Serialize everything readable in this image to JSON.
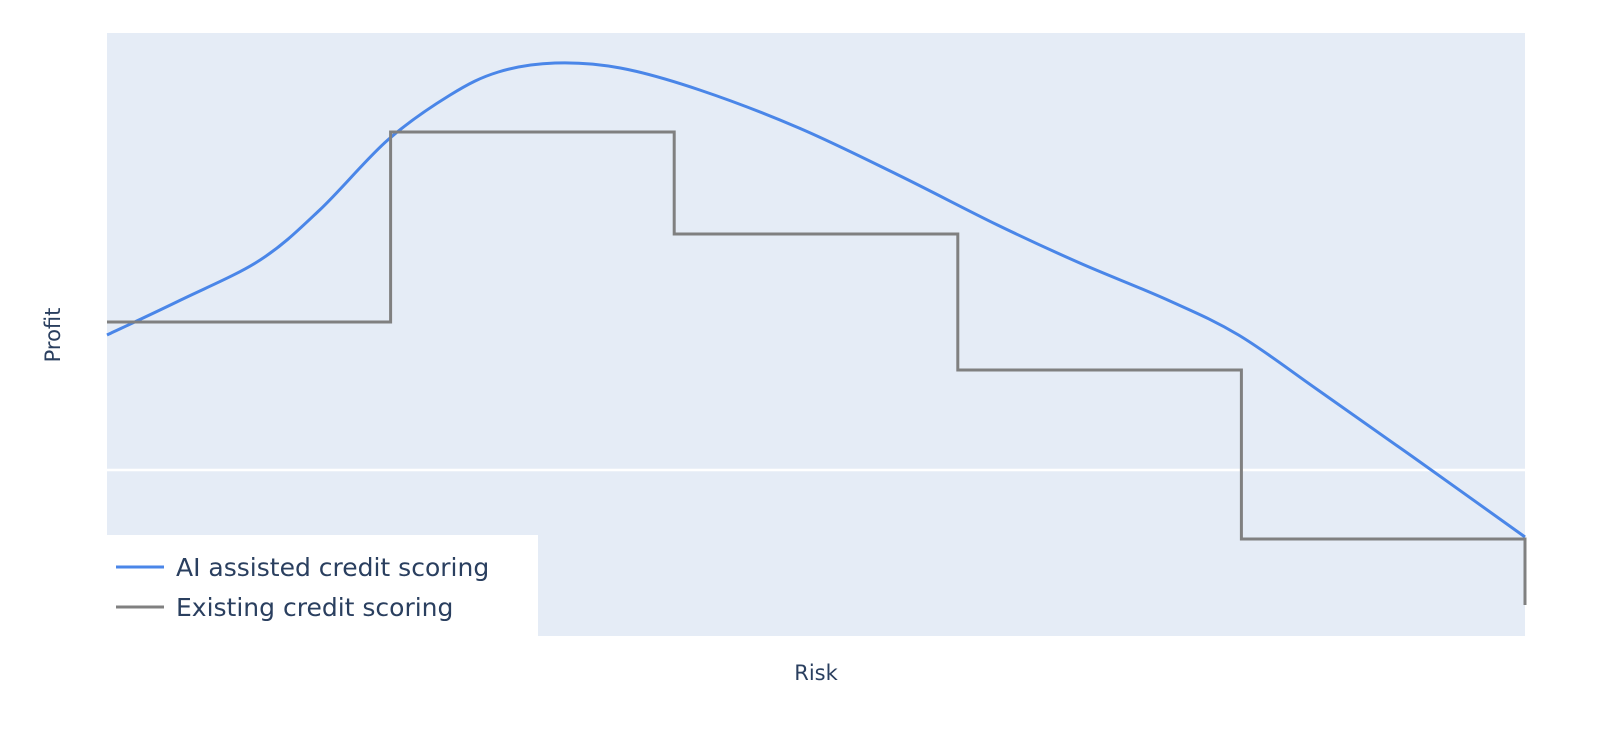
{
  "chart_data": {
    "type": "line",
    "title": "",
    "xlabel": "Risk",
    "ylabel": "Profit",
    "xlim": [
      0,
      5
    ],
    "ylim": [
      -1.66,
      4.37
    ],
    "grid": {
      "x": false,
      "y": "zero line only"
    },
    "tick_labels_shown": false,
    "legend_position": "bottom-left",
    "plot_background": "#e5ecf6",
    "series": [
      {
        "name": "AI assisted credit scoring",
        "color": "#4a86e8",
        "shape": "smooth",
        "x": [
          0,
          0.26,
          0.54,
          0.75,
          0.99,
          1.21,
          1.38,
          1.58,
          1.81,
          2.09,
          2.44,
          2.79,
          3.14,
          3.43,
          3.74,
          3.99,
          4.27,
          4.62,
          5
        ],
        "y": [
          1.35,
          1.7,
          2.1,
          2.6,
          3.3,
          3.75,
          3.98,
          4.07,
          4.02,
          3.8,
          3.42,
          2.95,
          2.45,
          2.07,
          1.7,
          1.35,
          0.8,
          0.1,
          -0.67
        ]
      },
      {
        "name": "Existing credit scoring",
        "color": "#808080",
        "shape": "step",
        "x": [
          0,
          1,
          2,
          3,
          4,
          5
        ],
        "y": [
          1.48,
          3.38,
          2.36,
          1.0,
          -0.69,
          -1.35
        ]
      }
    ]
  }
}
